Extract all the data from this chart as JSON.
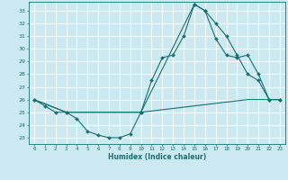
{
  "xlabel": "Humidex (Indice chaleur)",
  "bg_color": "#cce8f0",
  "grid_color": "#ffffff",
  "line_color": "#1a7070",
  "xlim": [
    -0.5,
    23.5
  ],
  "ylim": [
    22.5,
    33.7
  ],
  "xticks": [
    0,
    1,
    2,
    3,
    4,
    5,
    6,
    7,
    8,
    9,
    10,
    11,
    12,
    13,
    14,
    15,
    16,
    17,
    18,
    19,
    20,
    21,
    22,
    23
  ],
  "yticks": [
    23,
    24,
    25,
    26,
    27,
    28,
    29,
    30,
    31,
    32,
    33
  ],
  "line1_x": [
    0,
    1,
    2,
    3,
    4,
    5,
    6,
    7,
    8,
    9,
    10,
    11,
    12,
    13,
    14,
    15,
    16,
    17,
    18,
    19,
    20,
    21,
    22,
    23
  ],
  "line1_y": [
    26,
    25.5,
    25,
    25,
    24.5,
    23.5,
    23.2,
    23,
    23,
    23.3,
    25,
    27.5,
    29.3,
    29.5,
    31,
    33.5,
    33,
    32,
    31,
    29.5,
    28,
    27.5,
    26,
    26
  ],
  "line2_x": [
    0,
    3,
    10,
    15,
    16,
    17,
    18,
    19,
    20,
    21,
    22,
    23
  ],
  "line2_y": [
    26,
    25,
    25,
    33.5,
    33,
    30.8,
    29.5,
    29.3,
    29.5,
    28,
    26,
    26
  ],
  "line3_x": [
    0,
    3,
    10,
    15,
    20,
    23
  ],
  "line3_y": [
    26,
    25,
    25,
    25.5,
    26,
    26
  ],
  "fig_w": 3.2,
  "fig_h": 2.0,
  "dpi": 100
}
